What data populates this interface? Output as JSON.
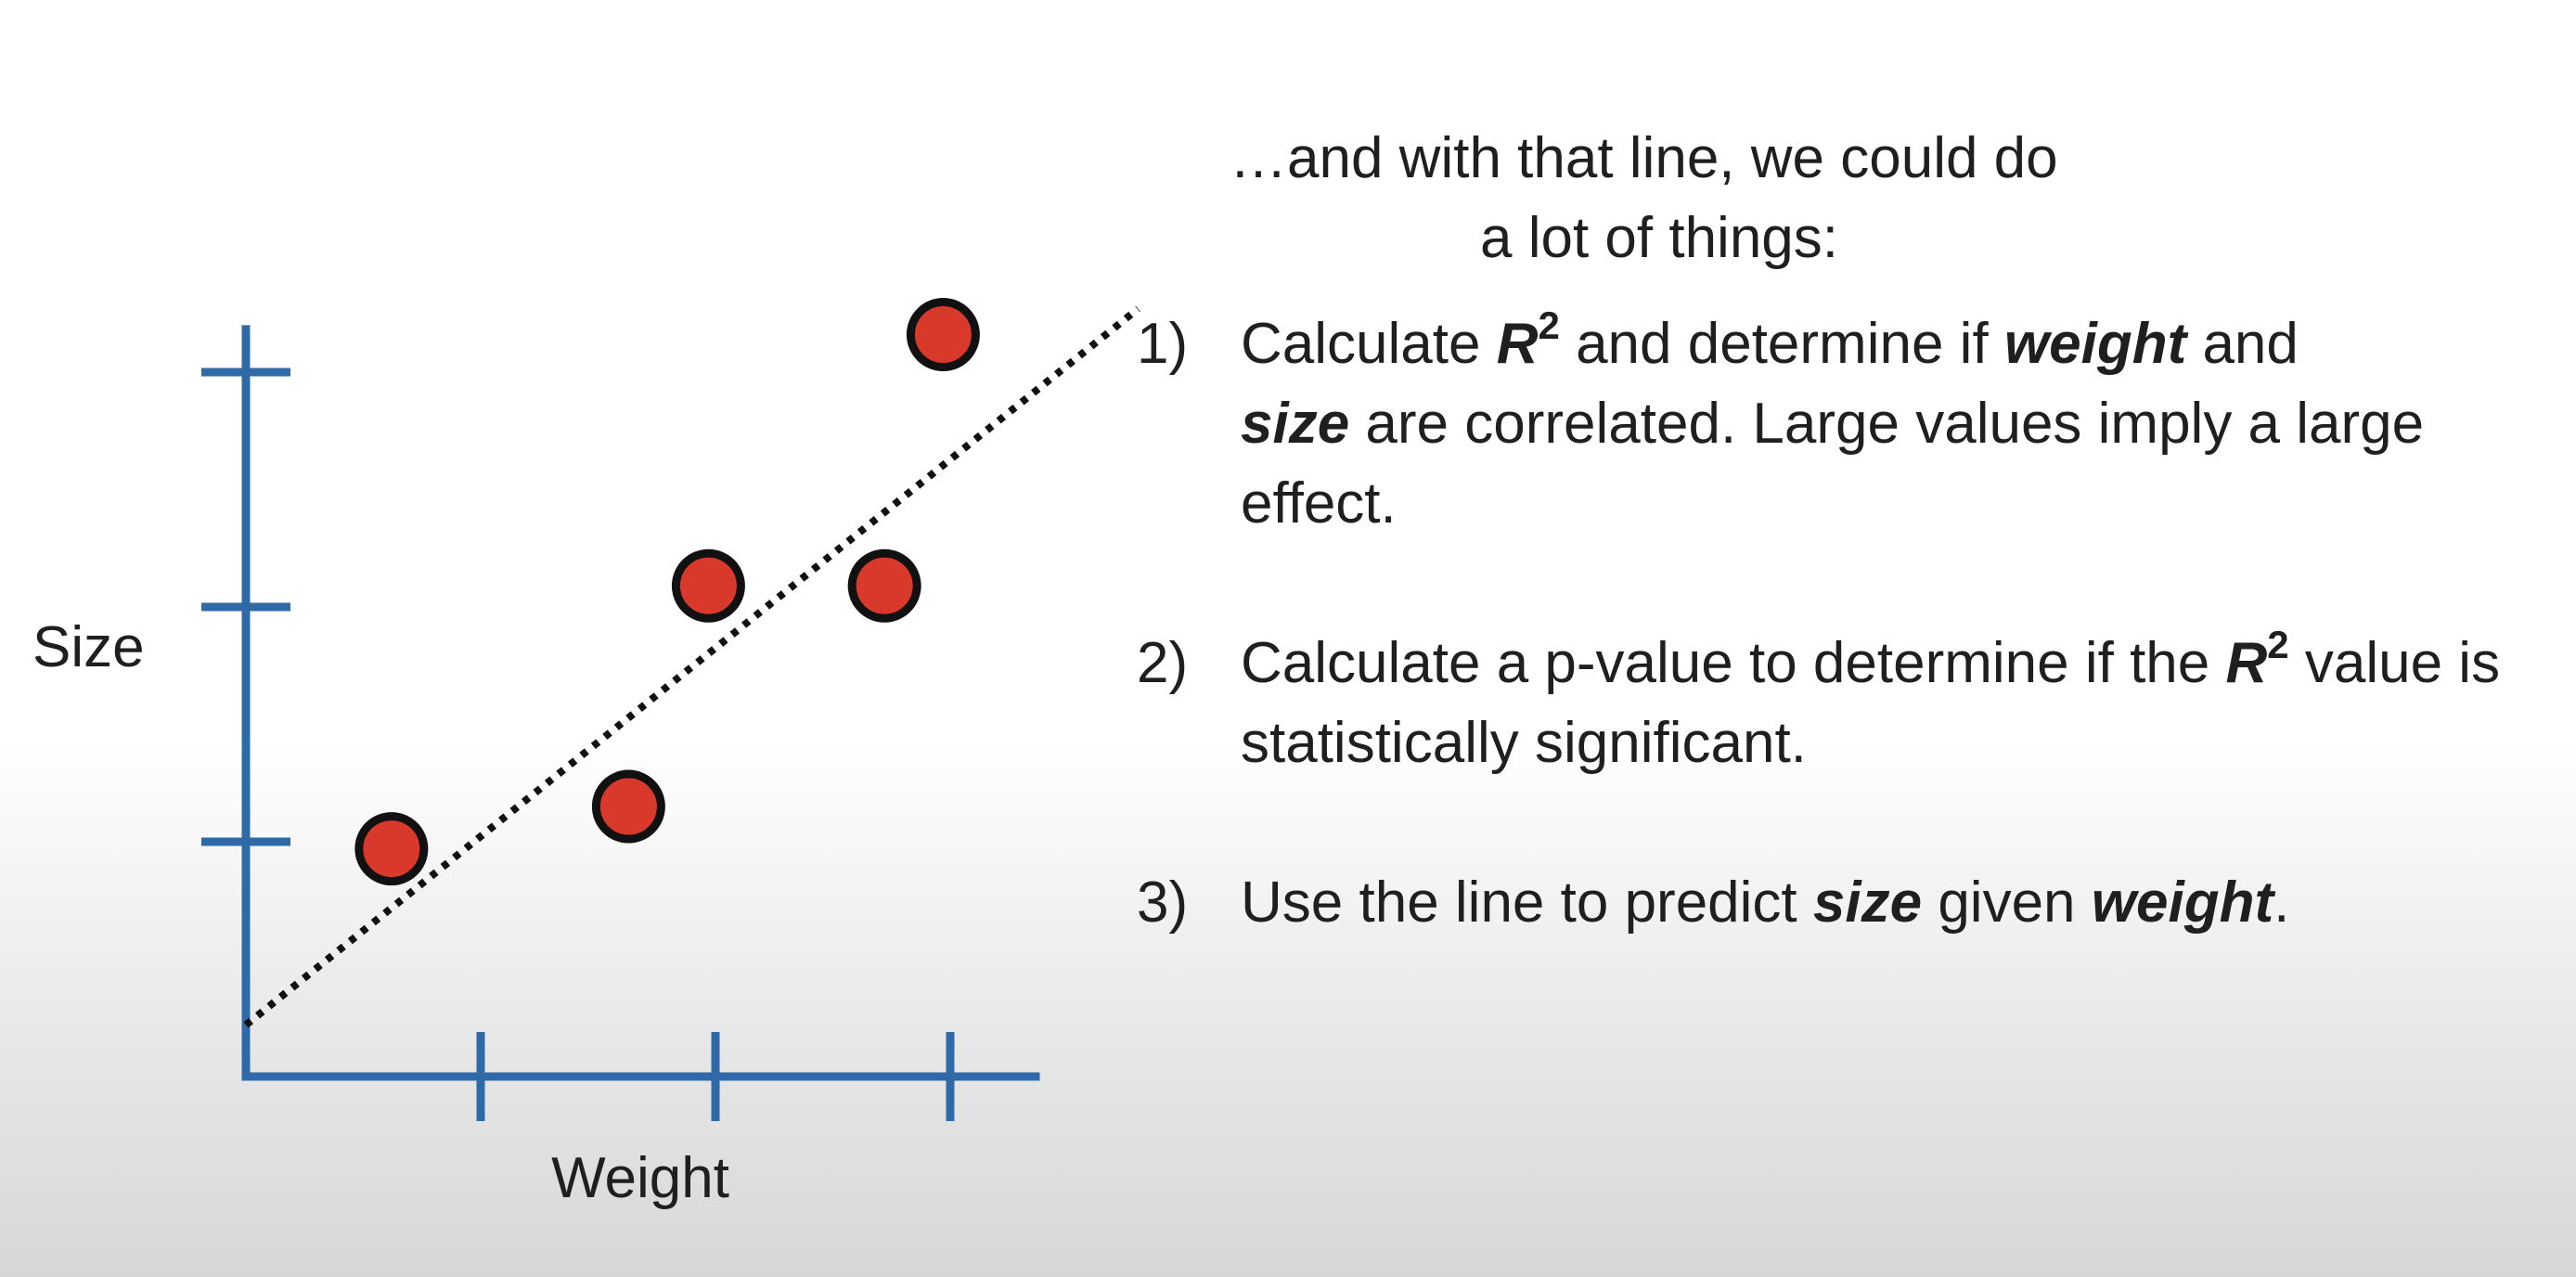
{
  "chart_data": {
    "type": "scatter",
    "xlabel": "Weight",
    "ylabel": "Size",
    "xlim": [
      0,
      3.5
    ],
    "ylim": [
      0,
      3.2
    ],
    "x_ticks": [
      1,
      2,
      3
    ],
    "y_ticks": [
      1,
      2,
      3
    ],
    "x_tick_labels": [
      "",
      "",
      ""
    ],
    "y_tick_labels": [
      "",
      "",
      ""
    ],
    "grid": false,
    "points": [
      {
        "x": 0.62,
        "y": 0.97
      },
      {
        "x": 1.63,
        "y": 1.15
      },
      {
        "x": 1.97,
        "y": 2.09
      },
      {
        "x": 2.72,
        "y": 2.09
      },
      {
        "x": 2.97,
        "y": 3.16
      }
    ],
    "fit_line": {
      "x_start": 0,
      "y_start": 0.22,
      "x_end": 3.8,
      "y_end": 3.27,
      "style": "dotted"
    },
    "colors": {
      "axis": "#2f69a8",
      "point_fill": "#d8392b",
      "point_stroke": "#111111",
      "line": "#111111"
    }
  },
  "text": {
    "intro_line1": "…and with that line, we could do",
    "intro_line2": "a lot of things:",
    "item1": {
      "num": "1)",
      "t1": "Calculate ",
      "r": "R",
      "sup": "2",
      "t2": " and determine if ",
      "weight": "weight",
      "t3": " and",
      "size": "size",
      "t4": " are correlated. Large values imply a large effect."
    },
    "item2": {
      "num": "2)",
      "t1": "Calculate a p-value to determine if the ",
      "r": "R",
      "sup": "2",
      "t2": " value is statistically significant."
    },
    "item3": {
      "num": "3)",
      "t1": "Use the line to predict ",
      "size": "size",
      "t2": " given ",
      "weight": "weight",
      "t3": "."
    }
  }
}
